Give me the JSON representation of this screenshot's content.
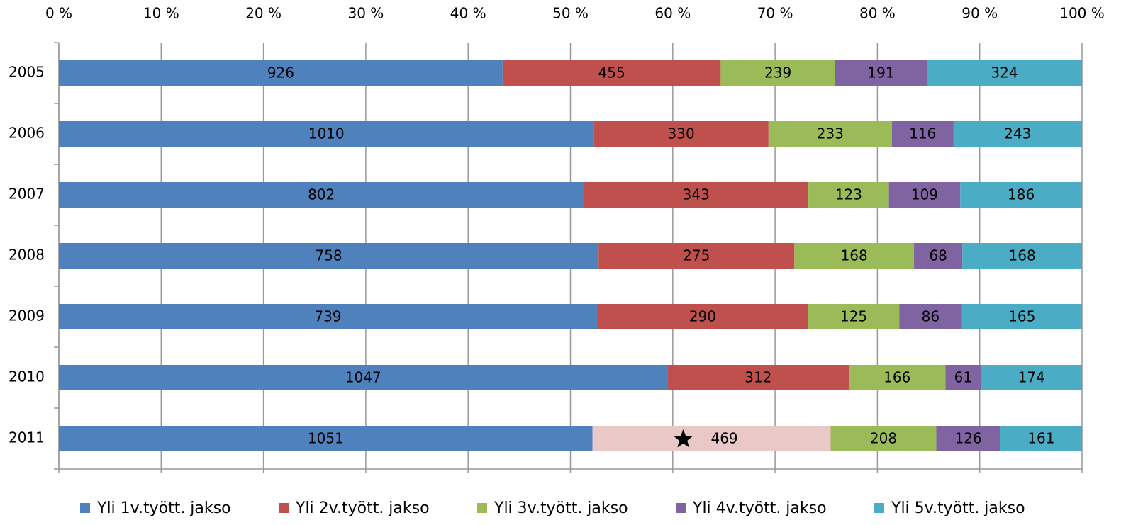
{
  "chart_data": {
    "type": "bar",
    "orientation": "horizontal",
    "stacking": "percent",
    "categories": [
      "2005",
      "2006",
      "2007",
      "2008",
      "2009",
      "2010",
      "2011"
    ],
    "series": [
      {
        "name": "Yli 1v.tyött. jakso",
        "color": "#4f81bd",
        "values": [
          926,
          1010,
          802,
          758,
          739,
          1047,
          1051
        ]
      },
      {
        "name": "Yli 2v.tyött. jakso",
        "color": "#c0504d",
        "values": [
          455,
          330,
          343,
          275,
          290,
          312,
          469
        ]
      },
      {
        "name": "Yli 3v.tyött. jakso",
        "color": "#9bbb59",
        "values": [
          239,
          233,
          123,
          168,
          125,
          166,
          208
        ]
      },
      {
        "name": "Yli 4v.tyött. jakso",
        "color": "#8064a2",
        "values": [
          191,
          116,
          109,
          68,
          86,
          61,
          126
        ]
      },
      {
        "name": "Yli 5v.tyött. jakso",
        "color": "#4bacc6",
        "values": [
          324,
          243,
          186,
          168,
          165,
          174,
          161
        ]
      }
    ],
    "highlight": {
      "series": 1,
      "index": 6,
      "color": "#ebc8c8"
    },
    "xlim": [
      0,
      100
    ],
    "xticks": [
      {
        "value": 0,
        "label": "0 %"
      },
      {
        "value": 10,
        "label": "10 %"
      },
      {
        "value": 20,
        "label": "20 %"
      },
      {
        "value": 30,
        "label": "30 %"
      },
      {
        "value": 40,
        "label": "40 %"
      },
      {
        "value": 50,
        "label": "50 %"
      },
      {
        "value": 60,
        "label": "60 %"
      },
      {
        "value": 70,
        "label": "70 %"
      },
      {
        "value": 80,
        "label": "80 %"
      },
      {
        "value": 90,
        "label": "90 %"
      },
      {
        "value": 100,
        "label": "100 %"
      }
    ],
    "grid": true,
    "legend": "bottom"
  }
}
